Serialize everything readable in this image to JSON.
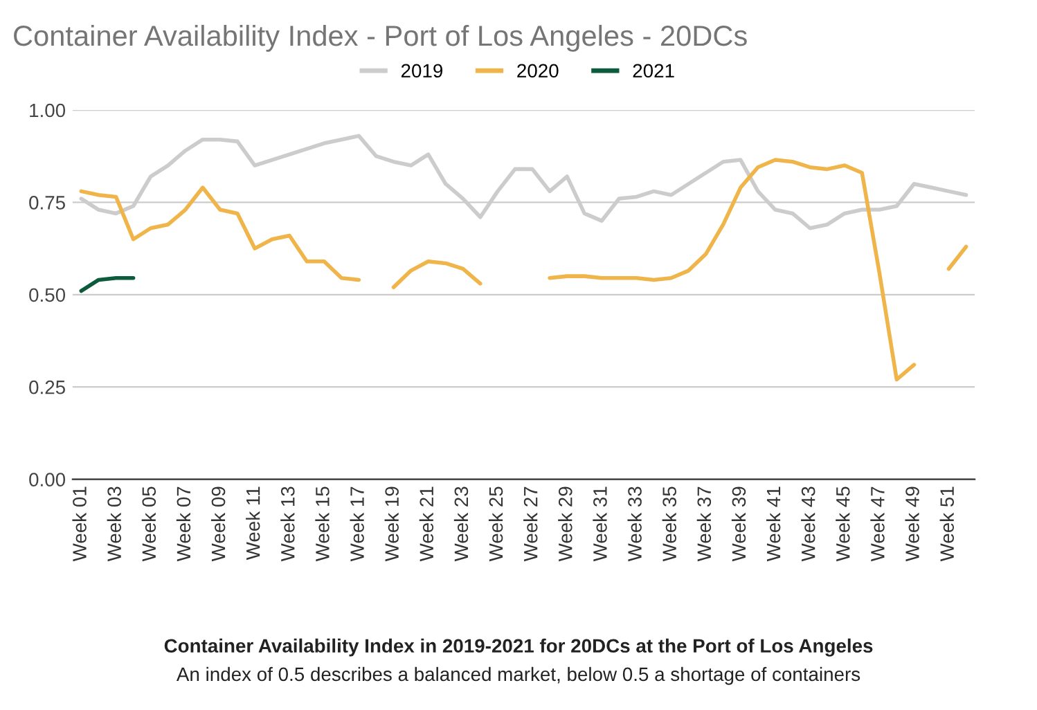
{
  "chart_data": {
    "type": "line",
    "title": "Container Availability Index - Port of Los Angeles - 20DCs",
    "categories": [
      "Week 01",
      null,
      "Week 03",
      null,
      "Week 05",
      null,
      "Week 07",
      null,
      "Week 09",
      null,
      "Week 11",
      null,
      "Week 13",
      null,
      "Week 15",
      null,
      "Week 17",
      null,
      "Week 19",
      null,
      "Week 21",
      null,
      "Week 23",
      null,
      "Week 25",
      null,
      "Week 27",
      null,
      "Week 29",
      null,
      "Week 31",
      null,
      "Week 33",
      null,
      "Week 35",
      null,
      "Week 37",
      null,
      "Week 39",
      null,
      "Week 41",
      null,
      "Week 43",
      null,
      "Week 45",
      null,
      "Week 47",
      null,
      "Week 49",
      null,
      "Week 51",
      null
    ],
    "series": [
      {
        "name": "2019",
        "color": "#cccccc",
        "values": [
          0.76,
          0.73,
          0.72,
          0.74,
          0.82,
          0.85,
          0.89,
          0.92,
          0.92,
          0.915,
          0.85,
          0.865,
          0.88,
          0.895,
          0.91,
          0.92,
          0.93,
          0.875,
          0.86,
          0.85,
          0.88,
          0.8,
          0.76,
          0.71,
          0.78,
          0.84,
          0.84,
          0.78,
          0.82,
          0.72,
          0.7,
          0.76,
          0.765,
          0.78,
          0.77,
          0.8,
          0.83,
          0.86,
          0.865,
          0.78,
          0.73,
          0.72,
          0.68,
          0.69,
          0.72,
          0.73,
          0.73,
          0.74,
          0.8,
          0.79,
          0.78,
          0.77
        ]
      },
      {
        "name": "2020",
        "color": "#f0b54a",
        "values": [
          0.78,
          0.77,
          0.765,
          0.65,
          0.68,
          0.69,
          0.73,
          0.79,
          0.73,
          0.72,
          0.625,
          0.65,
          0.66,
          0.59,
          0.59,
          0.545,
          0.54,
          null,
          0.52,
          0.565,
          0.59,
          0.585,
          0.57,
          0.53,
          null,
          null,
          null,
          0.545,
          0.55,
          0.55,
          0.545,
          0.545,
          0.545,
          0.54,
          0.545,
          0.565,
          0.61,
          0.69,
          0.79,
          0.845,
          0.865,
          0.86,
          0.845,
          0.84,
          0.85,
          0.83,
          0.56,
          0.27,
          0.31,
          null,
          0.57,
          0.63
        ]
      },
      {
        "name": "2021",
        "color": "#0b5b3c",
        "values": [
          0.51,
          0.54,
          0.545,
          0.545,
          null,
          null,
          null,
          null,
          null,
          null,
          null,
          null,
          null,
          null,
          null,
          null,
          null,
          null,
          null,
          null,
          null,
          null,
          null,
          null,
          null,
          null,
          null,
          null,
          null,
          null,
          null,
          null,
          null,
          null,
          null,
          null,
          null,
          null,
          null,
          null,
          null,
          null,
          null,
          null,
          null,
          null,
          null,
          null,
          null,
          null,
          null,
          null
        ]
      }
    ],
    "ylim": [
      0,
      1.0
    ],
    "yticks": [
      {
        "value": 0,
        "label": "0.00"
      },
      {
        "value": 0.25,
        "label": "0.25"
      },
      {
        "value": 0.5,
        "label": "0.50"
      },
      {
        "value": 0.75,
        "label": "0.75"
      },
      {
        "value": 1.0,
        "label": "1.00"
      }
    ],
    "grid": "y",
    "legend": "top",
    "marker": "none",
    "line_style": "solid",
    "annotations": [
      "Container Availability Index in 2019-2021 for 20DCs at the Port of Los Angeles",
      "An index of 0.5 describes a balanced market, below 0.5 a shortage of containers"
    ]
  }
}
